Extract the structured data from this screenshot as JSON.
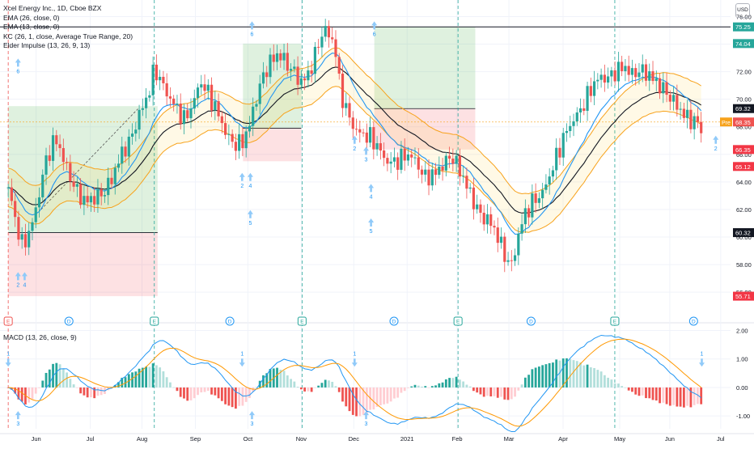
{
  "legend": {
    "symbol": "Xcel Energy Inc., 1D, Cboe BZX",
    "ema26": "EMA (26, close, 0)",
    "ema13": "EMA (13, close, 0)",
    "kc": "KC (26, 1, close, Average True Range, 20)",
    "elder": "Elder Impulse (13, 26, 9, 13)",
    "macd": "MACD (13, 26, close, 9)",
    "currency": "USD"
  },
  "colors": {
    "up": "#26a69a",
    "down": "#ef5350",
    "ema26": "#131722",
    "ema13": "#2196f3",
    "kc": "#f7a21b",
    "macd_line": "#2196f3",
    "signal_line": "#ff9800",
    "arrow": "#90caf9",
    "dash_red": "#ef5350",
    "dash_teal": "#26a69a"
  },
  "chart_data": [
    {
      "type": "candlestick",
      "ylim": [
        54.6,
        77.2
      ],
      "price_ticks": [
        "76.00",
        "74.00",
        "72.00",
        "70.00",
        "68.00",
        "66.00",
        "64.00",
        "62.00",
        "60.00",
        "58.00",
        "56.00"
      ],
      "x_labels": [
        "Jun",
        "Jul",
        "Aug",
        "Sep",
        "Oct",
        "Nov",
        "Dec",
        "2021",
        "Feb",
        "Mar",
        "Apr",
        "May",
        "Jun",
        "Jul"
      ],
      "x_label_days": [
        34,
        100,
        163,
        228,
        292,
        357,
        421,
        486,
        547,
        610,
        676,
        745,
        806,
        868
      ],
      "x_domain": [
        -10,
        880
      ],
      "price_badges": [
        {
          "label": "75.25",
          "value": 75.25,
          "bg": "#26a69a"
        },
        {
          "label": "74.04",
          "value": 74.04,
          "bg": "#26a69a"
        },
        {
          "label": "69.32",
          "value": 69.32,
          "bg": "#131722"
        },
        {
          "label": "68.35",
          "value": 68.35,
          "bg": "#ef5350",
          "prefix": "Pre"
        },
        {
          "label": "66.35",
          "value": 66.35,
          "bg": "#f23645"
        },
        {
          "label": "65.12",
          "value": 65.12,
          "bg": "#f23645"
        },
        {
          "label": "60.32",
          "value": 60.32,
          "bg": "#131722"
        },
        {
          "label": "55.71",
          "value": 55.71,
          "bg": "#f23645"
        }
      ],
      "horizontal_lines": [
        75.25
      ],
      "pre_market_line": 68.35,
      "position_boxes": [
        {
          "from": 0,
          "to": 182,
          "entry": 60.32,
          "target": 69.5,
          "stop": 55.71
        },
        {
          "from": 286,
          "to": 357,
          "entry": 67.9,
          "target": 74.04,
          "stop": 65.5
        },
        {
          "from": 446,
          "to": 569,
          "entry": 69.32,
          "target": 75.25,
          "stop": 66.35
        }
      ],
      "event_lines": [
        {
          "day": 0,
          "color": "red"
        },
        {
          "day": 178,
          "color": "teal"
        },
        {
          "day": 358,
          "color": "teal"
        },
        {
          "day": 548,
          "color": "teal"
        },
        {
          "day": 739,
          "color": "teal"
        }
      ],
      "event_badges": [
        {
          "day": 0,
          "label": "E",
          "kind": "E-red"
        },
        {
          "day": 74,
          "label": "D",
          "kind": "D"
        },
        {
          "day": 178,
          "label": "E",
          "kind": "E"
        },
        {
          "day": 270,
          "label": "D",
          "kind": "D"
        },
        {
          "day": 358,
          "label": "E",
          "kind": "E"
        },
        {
          "day": 470,
          "label": "D",
          "kind": "D"
        },
        {
          "day": 548,
          "label": "E",
          "kind": "E"
        },
        {
          "day": 637,
          "label": "D",
          "kind": "D"
        },
        {
          "day": 739,
          "label": "E",
          "kind": "E"
        },
        {
          "day": 835,
          "label": "D",
          "kind": "D"
        }
      ],
      "arrow_marks": [
        {
          "day": 12,
          "value": 72.6,
          "dir": "up",
          "label": "6"
        },
        {
          "day": 297,
          "value": 75.3,
          "dir": "up",
          "label": "6"
        },
        {
          "day": 446,
          "value": 75.3,
          "dir": "up",
          "label": "6"
        },
        {
          "day": 12,
          "value": 57.1,
          "dir": "up",
          "label": "2"
        },
        {
          "day": 20,
          "value": 57.1,
          "dir": "up",
          "label": "4"
        },
        {
          "day": 285,
          "value": 64.3,
          "dir": "up",
          "label": "2"
        },
        {
          "day": 295,
          "value": 64.3,
          "dir": "up",
          "label": "4"
        },
        {
          "day": 295,
          "value": 61.6,
          "dir": "up",
          "label": "5"
        },
        {
          "day": 422,
          "value": 67.0,
          "dir": "up",
          "label": "2"
        },
        {
          "day": 436,
          "value": 66.2,
          "dir": "up",
          "label": "3"
        },
        {
          "day": 442,
          "value": 63.5,
          "dir": "up",
          "label": "4"
        },
        {
          "day": 442,
          "value": 61.0,
          "dir": "up",
          "label": "5"
        },
        {
          "day": 862,
          "value": 67.0,
          "dir": "up",
          "label": "2"
        }
      ]
    },
    {
      "type": "macd",
      "ylim": [
        -1.45,
        2.1
      ],
      "ticks": [
        "2.00",
        "1.00",
        "0.00",
        "-1.00"
      ],
      "markers": [
        {
          "day": 0,
          "dir": "down",
          "label": "1"
        },
        {
          "day": 285,
          "dir": "down",
          "label": "1"
        },
        {
          "day": 422,
          "dir": "down",
          "label": "1"
        },
        {
          "day": 845,
          "dir": "down",
          "label": "1"
        },
        {
          "day": 12,
          "dir": "up",
          "label": "3"
        },
        {
          "day": 297,
          "dir": "up",
          "label": "3"
        },
        {
          "day": 436,
          "dir": "up",
          "label": "3"
        }
      ]
    }
  ]
}
